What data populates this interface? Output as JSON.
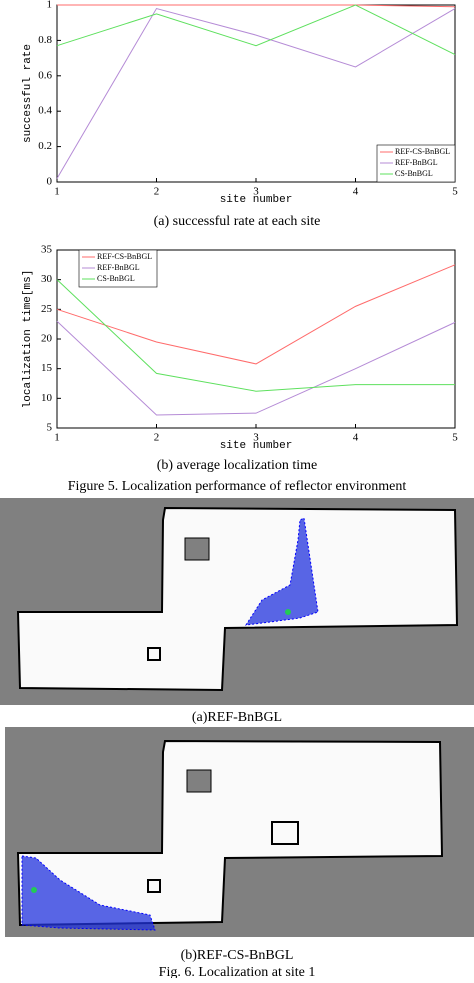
{
  "chart_data": [
    {
      "type": "line",
      "ylabel": "successful rate",
      "xlabel": "site number",
      "caption": "(a) successful rate at each site",
      "x": [
        1,
        2,
        3,
        4,
        5
      ],
      "xlim": [
        1,
        5
      ],
      "xticks": [
        1,
        2,
        3,
        4,
        5
      ],
      "ylim": [
        0,
        1
      ],
      "yticks": [
        0,
        0.2,
        0.4,
        0.6,
        0.8,
        1
      ],
      "legend": "lower right",
      "series": [
        {
          "name": "REF-CS-BnBGL",
          "color": "#ff6b6b",
          "values": [
            1,
            1,
            1,
            1,
            0.99
          ]
        },
        {
          "name": "REF-BnBGL",
          "color": "#b58bd6",
          "values": [
            0.02,
            0.98,
            0.83,
            0.65,
            0.98
          ]
        },
        {
          "name": "CS-BnBGL",
          "color": "#5ee05e",
          "values": [
            0.77,
            0.95,
            0.77,
            1,
            0.72
          ]
        }
      ]
    },
    {
      "type": "line",
      "ylabel": "localization time[ms]",
      "xlabel": "site number",
      "caption": "(b) average localization time",
      "x": [
        1,
        2,
        3,
        4,
        5
      ],
      "xlim": [
        1,
        5
      ],
      "xticks": [
        1,
        2,
        3,
        4,
        5
      ],
      "ylim": [
        5,
        35
      ],
      "yticks": [
        5,
        10,
        15,
        20,
        25,
        30,
        35
      ],
      "legend": "upper left",
      "series": [
        {
          "name": "REF-CS-BnBGL",
          "color": "#ff6b6b",
          "values": [
            25,
            19.5,
            15.8,
            25.5,
            32.5
          ]
        },
        {
          "name": "REF-BnBGL",
          "color": "#b58bd6",
          "values": [
            23,
            7.2,
            7.5,
            15,
            22.8
          ]
        },
        {
          "name": "CS-BnBGL",
          "color": "#5ee05e",
          "values": [
            30,
            14.2,
            11.2,
            12.3,
            12.3
          ]
        }
      ]
    }
  ],
  "figure5_caption": "Figure 5. Localization performance of reflector environment",
  "maps": [
    {
      "caption": "(a)REF-BnBGL"
    },
    {
      "caption": "(b)REF-CS-BnBGL"
    }
  ],
  "figure6_caption": "Fig. 6. Localization at site 1"
}
